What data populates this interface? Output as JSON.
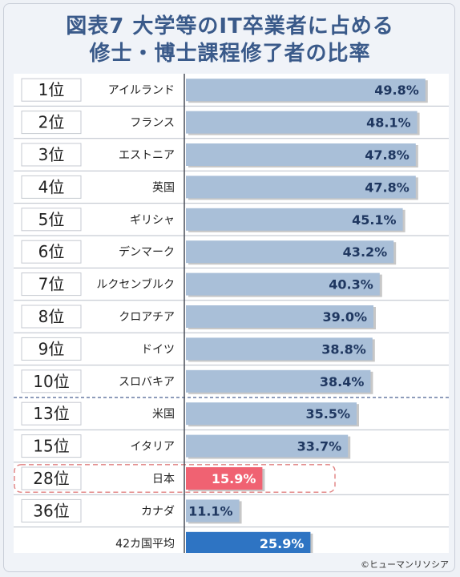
{
  "title_line1": "図表7 大学等のIT卒業者に占める",
  "title_line2": "修士・博士課程修了者の比率",
  "copyright": "©ヒューマンリソシア",
  "colors": {
    "bar_default": "#a9bfd8",
    "bar_japan": "#f06272",
    "bar_average": "#2e74c3",
    "text_main": "#222222",
    "title": "#3a5a8a",
    "highlight_border": "#e08080"
  },
  "chart_data": {
    "type": "bar",
    "orientation": "horizontal",
    "title": "図表7 大学等のIT卒業者に占める修士・博士課程修了者の比率",
    "xlim": [
      0,
      55
    ],
    "grid": false,
    "ranks": [
      "1位",
      "2位",
      "3位",
      "4位",
      "5位",
      "6位",
      "7位",
      "8位",
      "9位",
      "10位",
      "13位",
      "15位",
      "28位",
      "36位",
      ""
    ],
    "categories": [
      "アイルランド",
      "フランス",
      "エストニア",
      "英国",
      "ギリシャ",
      "デンマーク",
      "ルクセンブルク",
      "クロアチア",
      "ドイツ",
      "スロバキア",
      "米国",
      "イタリア",
      "日本",
      "カナダ",
      "42カ国平均"
    ],
    "values": [
      49.8,
      48.1,
      47.8,
      47.8,
      45.1,
      43.2,
      40.3,
      39.0,
      38.8,
      38.4,
      35.5,
      33.7,
      15.9,
      11.1,
      25.9
    ],
    "value_labels": [
      "49.8%",
      "48.1%",
      "47.8%",
      "47.8%",
      "45.1%",
      "43.2%",
      "40.3%",
      "39.0%",
      "38.8%",
      "38.4%",
      "35.5%",
      "33.7%",
      "15.9%",
      "11.1%",
      "25.9%"
    ],
    "highlight_category": "日本",
    "average_category": "42カ国平均"
  }
}
